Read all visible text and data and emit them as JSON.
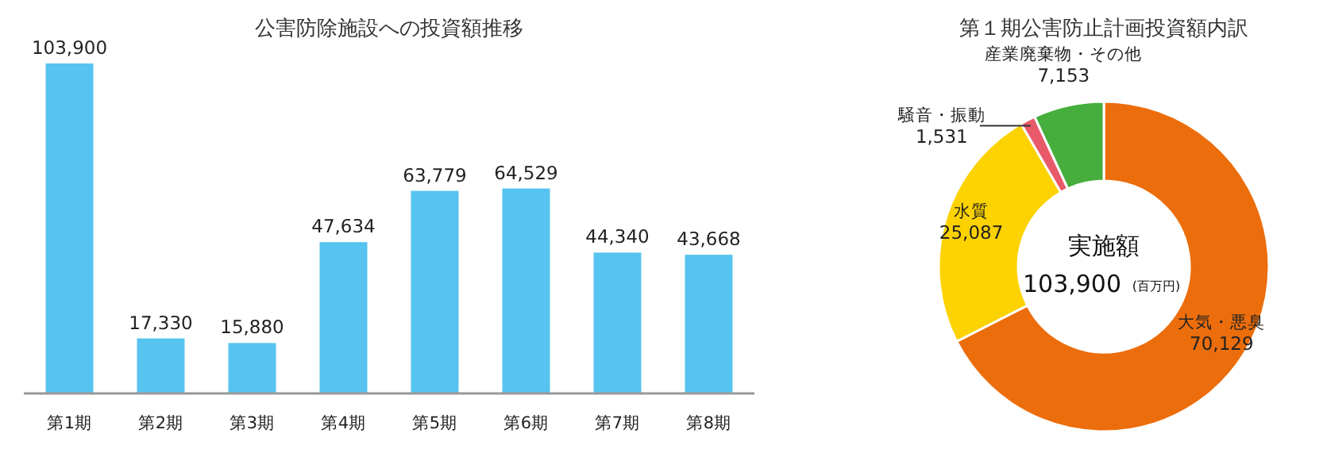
{
  "chart_data": [
    {
      "type": "bar",
      "title": "公害防除施設への投資額推移",
      "categories": [
        "第1期",
        "第2期",
        "第3期",
        "第4期",
        "第5期",
        "第6期",
        "第7期",
        "第8期"
      ],
      "values": [
        103900,
        17330,
        15880,
        47634,
        63779,
        64529,
        44340,
        43668
      ],
      "value_labels": [
        "103,900",
        "17,330",
        "15,880",
        "47,634",
        "63,779",
        "64,529",
        "44,340",
        "43,668"
      ],
      "color": "#56c3f0"
    },
    {
      "type": "donut",
      "title": "第１期公害防止計画投資額内訳",
      "categories": [
        "大気・悪臭",
        "水質",
        "騒音・振動",
        "産業廃棄物・その他"
      ],
      "values": [
        70129,
        25087,
        1531,
        7153
      ],
      "value_labels": [
        "70,129",
        "25,087",
        "1,531",
        "7,153"
      ],
      "colors": [
        "#ec6d0b",
        "#fcd200",
        "#e85a6a",
        "#45ae3c"
      ],
      "annotations": [
        "実施額",
        "103,900",
        "(百万円)"
      ]
    }
  ]
}
